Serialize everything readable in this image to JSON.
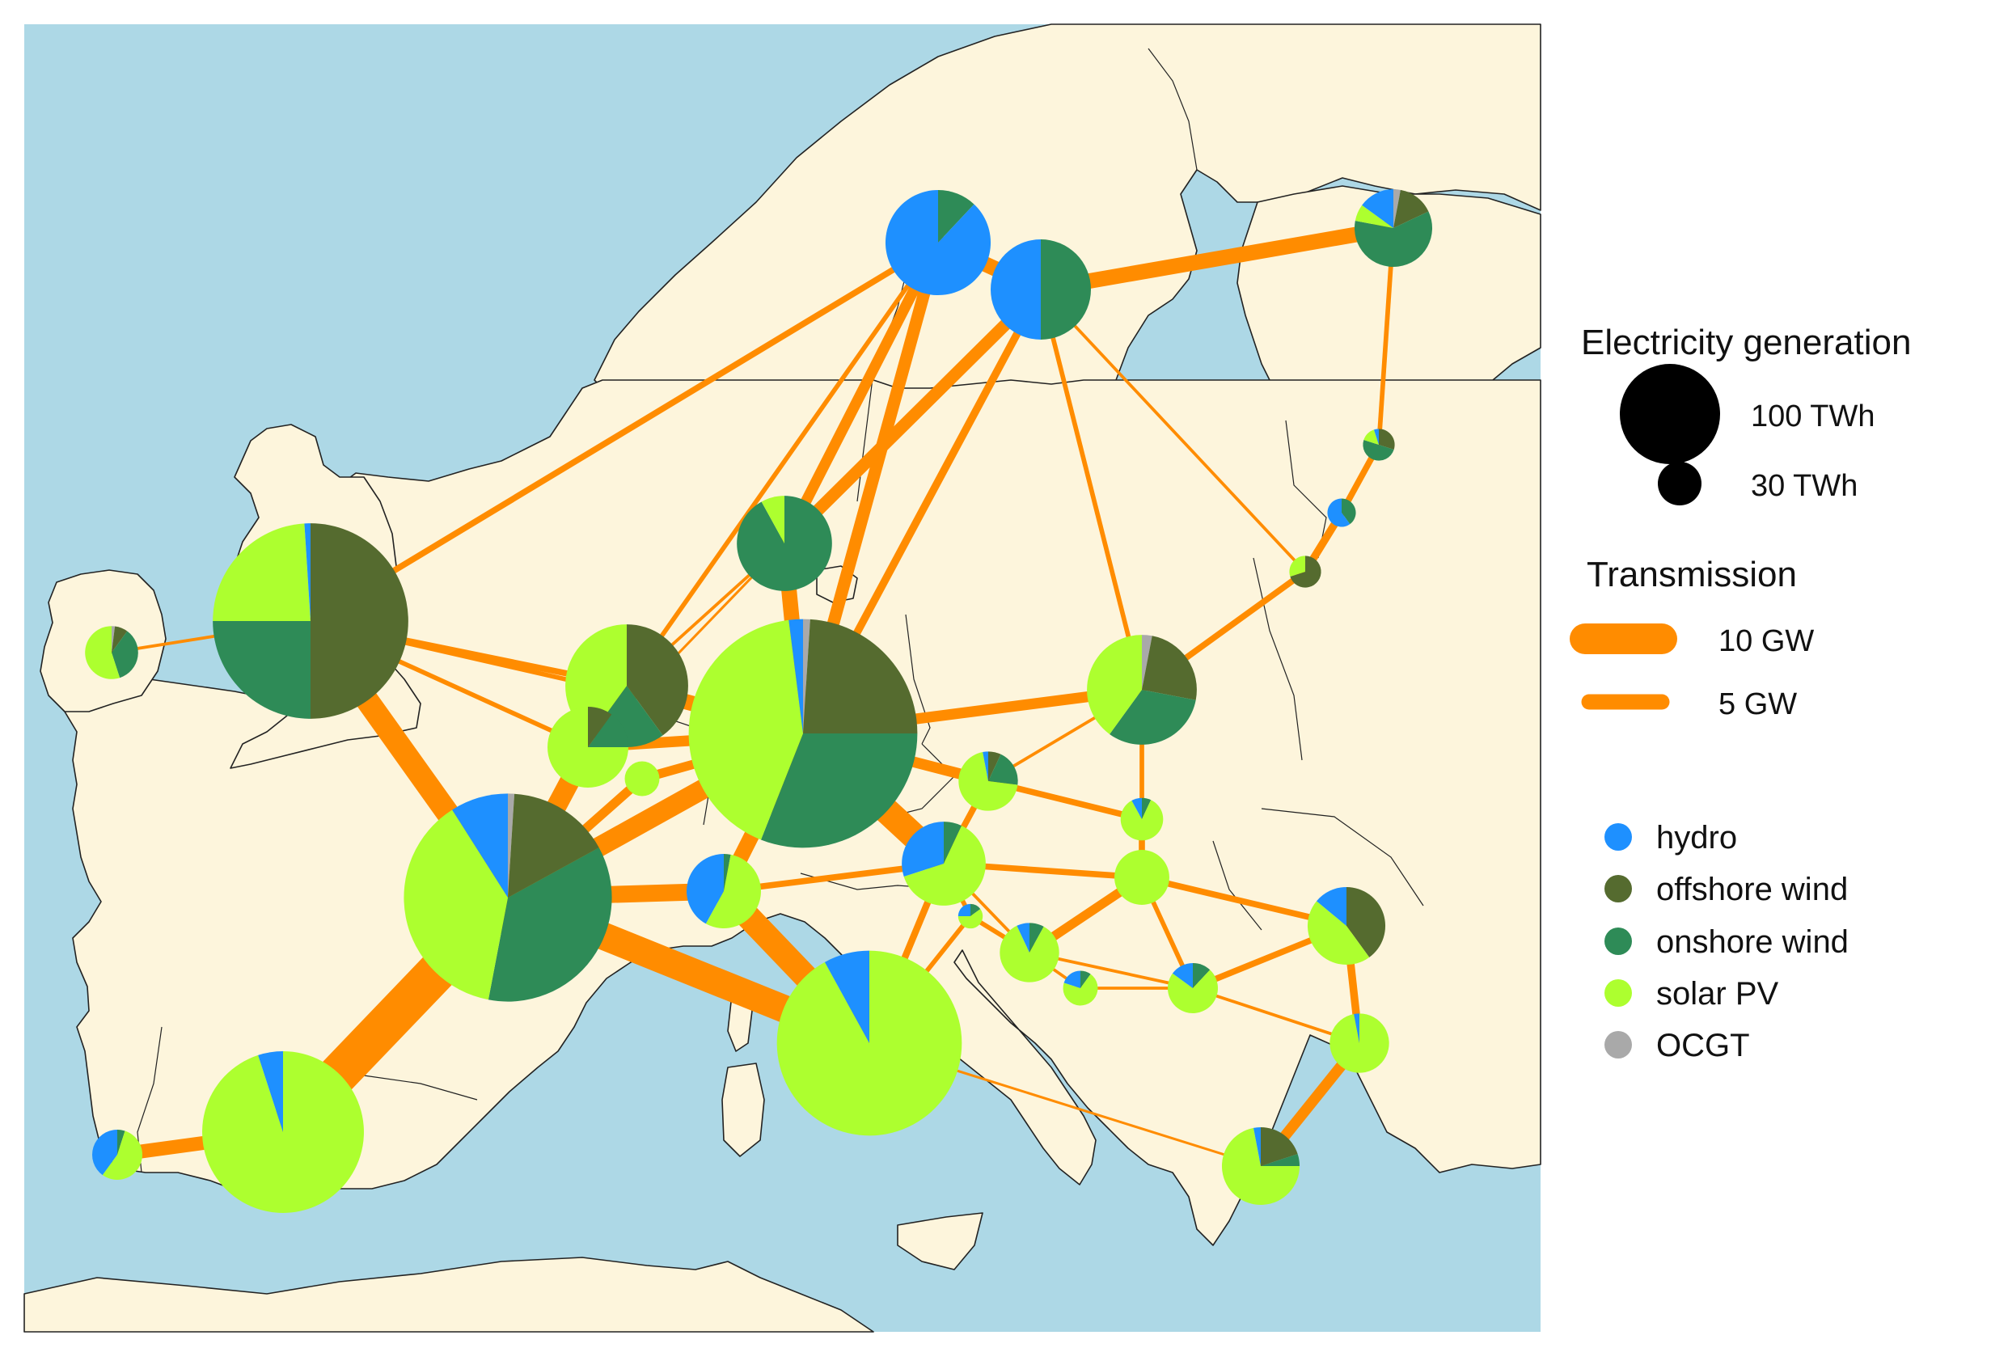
{
  "map": {
    "sea_color": "#add8e6",
    "land_color": "#fdf5dc",
    "border_color": "#222222",
    "line_color": "#ff8c00"
  },
  "carriers": [
    {
      "key": "hydro",
      "label": "hydro",
      "color": "#1e90ff"
    },
    {
      "key": "offshore_wind",
      "label": "offshore wind",
      "color": "#556b2f"
    },
    {
      "key": "onshore_wind",
      "label": "onshore wind",
      "color": "#2e8b57"
    },
    {
      "key": "solar",
      "label": "solar PV",
      "color": "#adff2f"
    },
    {
      "key": "ocgt",
      "label": "OCGT",
      "color": "#a9a9a9"
    }
  ],
  "legend": {
    "generation_title": "Electricity generation",
    "generation_sizes": [
      {
        "label": "100 TWh",
        "twh": 100
      },
      {
        "label": "30 TWh",
        "twh": 30
      }
    ],
    "transmission_title": "Transmission",
    "transmission_sizes": [
      {
        "label": "10 GW",
        "gw": 10
      },
      {
        "label": "5 GW",
        "gw": 5
      }
    ]
  },
  "nodes": [
    {
      "id": "NO",
      "twh": 110,
      "shares": {
        "hydro": 0.88,
        "onshore_wind": 0.12
      }
    },
    {
      "id": "SE",
      "twh": 100,
      "shares": {
        "hydro": 0.5,
        "onshore_wind": 0.5
      }
    },
    {
      "id": "FI",
      "twh": 60,
      "shares": {
        "hydro": 0.15,
        "offshore_wind": 0.15,
        "onshore_wind": 0.6,
        "solar": 0.07,
        "ocgt": 0.03
      }
    },
    {
      "id": "EE",
      "twh": 10,
      "shares": {
        "hydro": 0.05,
        "offshore_wind": 0.3,
        "onshore_wind": 0.5,
        "solar": 0.15
      }
    },
    {
      "id": "LV",
      "twh": 8,
      "shares": {
        "hydro": 0.6,
        "onshore_wind": 0.4
      }
    },
    {
      "id": "LT",
      "twh": 10,
      "shares": {
        "offshore_wind": 0.7,
        "solar": 0.3
      }
    },
    {
      "id": "DK",
      "twh": 90,
      "shares": {
        "onshore_wind": 0.92,
        "solar": 0.08
      }
    },
    {
      "id": "GB",
      "twh": 380,
      "shares": {
        "hydro": 0.01,
        "offshore_wind": 0.5,
        "onshore_wind": 0.25,
        "solar": 0.24
      }
    },
    {
      "id": "IE",
      "twh": 28,
      "shares": {
        "ocgt": 0.02,
        "offshore_wind": 0.08,
        "onshore_wind": 0.35,
        "solar": 0.55
      }
    },
    {
      "id": "NL",
      "twh": 150,
      "shares": {
        "offshore_wind": 0.4,
        "onshore_wind": 0.2,
        "solar": 0.4
      }
    },
    {
      "id": "BE",
      "twh": 65,
      "shares": {
        "offshore_wind": 0.1,
        "onshore_wind": 0.15,
        "solar": 0.75
      }
    },
    {
      "id": "LU",
      "twh": 12,
      "shares": {
        "solar": 1
      }
    },
    {
      "id": "DE",
      "twh": 520,
      "shares": {
        "hydro": 0.02,
        "ocgt": 0.01,
        "offshore_wind": 0.24,
        "onshore_wind": 0.31,
        "solar": 0.42
      }
    },
    {
      "id": "PL",
      "twh": 120,
      "shares": {
        "ocgt": 0.03,
        "offshore_wind": 0.25,
        "onshore_wind": 0.32,
        "solar": 0.4
      }
    },
    {
      "id": "CZ",
      "twh": 35,
      "shares": {
        "hydro": 0.03,
        "offshore_wind": 0.07,
        "onshore_wind": 0.2,
        "solar": 0.7
      }
    },
    {
      "id": "SK",
      "twh": 18,
      "shares": {
        "hydro": 0.08,
        "onshore_wind": 0.07,
        "solar": 0.85
      }
    },
    {
      "id": "AT",
      "twh": 70,
      "shares": {
        "hydro": 0.3,
        "onshore_wind": 0.07,
        "solar": 0.63
      }
    },
    {
      "id": "HU",
      "twh": 30,
      "shares": {
        "solar": 1
      }
    },
    {
      "id": "FR",
      "twh": 430,
      "shares": {
        "hydro": 0.09,
        "ocgt": 0.01,
        "offshore_wind": 0.16,
        "onshore_wind": 0.36,
        "solar": 0.38
      }
    },
    {
      "id": "CH",
      "twh": 55,
      "shares": {
        "hydro": 0.42,
        "onshore_wind": 0.03,
        "solar": 0.55
      }
    },
    {
      "id": "IT",
      "twh": 340,
      "shares": {
        "hydro": 0.08,
        "solar": 0.92
      }
    },
    {
      "id": "SI",
      "twh": 6,
      "shares": {
        "hydro": 0.25,
        "onshore_wind": 0.15,
        "solar": 0.6
      }
    },
    {
      "id": "HR",
      "twh": 35,
      "shares": {
        "hydro": 0.07,
        "onshore_wind": 0.08,
        "solar": 0.85
      }
    },
    {
      "id": "BA",
      "twh": 12,
      "shares": {
        "hydro": 0.2,
        "onshore_wind": 0.1,
        "solar": 0.7
      }
    },
    {
      "id": "RS",
      "twh": 25,
      "shares": {
        "hydro": 0.15,
        "onshore_wind": 0.12,
        "solar": 0.73
      }
    },
    {
      "id": "RO",
      "twh": 60,
      "shares": {
        "hydro": 0.14,
        "offshore_wind": 0.4,
        "solar": 0.46
      }
    },
    {
      "id": "BG",
      "twh": 35,
      "shares": {
        "hydro": 0.03,
        "solar": 0.97
      }
    },
    {
      "id": "GR",
      "twh": 60,
      "shares": {
        "hydro": 0.03,
        "offshore_wind": 0.2,
        "onshore_wind": 0.05,
        "solar": 0.72
      }
    },
    {
      "id": "ES",
      "twh": 260,
      "shares": {
        "hydro": 0.05,
        "solar": 0.95
      }
    },
    {
      "id": "PT",
      "twh": 25,
      "shares": {
        "hydro": 0.4,
        "onshore_wind": 0.05,
        "solar": 0.55
      }
    }
  ],
  "links": [
    {
      "from": "ES",
      "to": "FR",
      "gw": 13
    },
    {
      "from": "ES",
      "to": "PT",
      "gw": 4.5
    },
    {
      "from": "FR",
      "to": "GB",
      "gw": 7.5
    },
    {
      "from": "FR",
      "to": "BE",
      "gw": 6.5
    },
    {
      "from": "FR",
      "to": "DE",
      "gw": 6.5
    },
    {
      "from": "FR",
      "to": "CH",
      "gw": 5.5
    },
    {
      "from": "FR",
      "to": "IT",
      "gw": 9
    },
    {
      "from": "FR",
      "to": "LU",
      "gw": 3
    },
    {
      "from": "IT",
      "to": "CH",
      "gw": 8
    },
    {
      "from": "IT",
      "to": "AT",
      "gw": 2.2
    },
    {
      "from": "IT",
      "to": "SI",
      "gw": 1.5
    },
    {
      "from": "IT",
      "to": "GR",
      "gw": 0.8
    },
    {
      "from": "DE",
      "to": "CH",
      "gw": 5
    },
    {
      "from": "DE",
      "to": "AT",
      "gw": 8.5
    },
    {
      "from": "DE",
      "to": "NL",
      "gw": 5
    },
    {
      "from": "DE",
      "to": "BE",
      "gw": 3.5
    },
    {
      "from": "DE",
      "to": "LU",
      "gw": 3
    },
    {
      "from": "DE",
      "to": "PL",
      "gw": 3.5
    },
    {
      "from": "DE",
      "to": "CZ",
      "gw": 3.5
    },
    {
      "from": "DE",
      "to": "DK",
      "gw": 5
    },
    {
      "from": "DE",
      "to": "NO",
      "gw": 4
    },
    {
      "from": "DE",
      "to": "SE",
      "gw": 2.5
    },
    {
      "from": "DE",
      "to": "GB",
      "gw": 1.5
    },
    {
      "from": "GB",
      "to": "NO",
      "gw": 2
    },
    {
      "from": "GB",
      "to": "NL",
      "gw": 2
    },
    {
      "from": "GB",
      "to": "BE",
      "gw": 1.5
    },
    {
      "from": "GB",
      "to": "IE",
      "gw": 1
    },
    {
      "from": "NL",
      "to": "BE",
      "gw": 2.5
    },
    {
      "from": "NL",
      "to": "NO",
      "gw": 1.5
    },
    {
      "from": "NL",
      "to": "DK",
      "gw": 1
    },
    {
      "from": "BE",
      "to": "DK",
      "gw": 0.8
    },
    {
      "from": "DK",
      "to": "NO",
      "gw": 3.5
    },
    {
      "from": "DK",
      "to": "SE",
      "gw": 4
    },
    {
      "from": "NO",
      "to": "SE",
      "gw": 5
    },
    {
      "from": "SE",
      "to": "FI",
      "gw": 5
    },
    {
      "from": "SE",
      "to": "PL",
      "gw": 1.5
    },
    {
      "from": "SE",
      "to": "LT",
      "gw": 1
    },
    {
      "from": "FI",
      "to": "EE",
      "gw": 1.5
    },
    {
      "from": "EE",
      "to": "LV",
      "gw": 2
    },
    {
      "from": "LV",
      "to": "LT",
      "gw": 2.5
    },
    {
      "from": "LT",
      "to": "PL",
      "gw": 2
    },
    {
      "from": "PL",
      "to": "CZ",
      "gw": 1
    },
    {
      "from": "PL",
      "to": "SK",
      "gw": 1.5
    },
    {
      "from": "CZ",
      "to": "AT",
      "gw": 2
    },
    {
      "from": "CZ",
      "to": "SK",
      "gw": 2
    },
    {
      "from": "SK",
      "to": "HU",
      "gw": 2
    },
    {
      "from": "AT",
      "to": "HU",
      "gw": 2
    },
    {
      "from": "AT",
      "to": "CH",
      "gw": 2
    },
    {
      "from": "AT",
      "to": "SI",
      "gw": 1.5
    },
    {
      "from": "AT",
      "to": "HR",
      "gw": 1
    },
    {
      "from": "HU",
      "to": "HR",
      "gw": 3
    },
    {
      "from": "HU",
      "to": "RS",
      "gw": 1.5
    },
    {
      "from": "HU",
      "to": "RO",
      "gw": 2
    },
    {
      "from": "SI",
      "to": "HR",
      "gw": 1.5
    },
    {
      "from": "HR",
      "to": "BA",
      "gw": 1
    },
    {
      "from": "HR",
      "to": "RS",
      "gw": 1
    },
    {
      "from": "BA",
      "to": "RS",
      "gw": 1
    },
    {
      "from": "RS",
      "to": "RO",
      "gw": 2
    },
    {
      "from": "RS",
      "to": "BG",
      "gw": 1
    },
    {
      "from": "RO",
      "to": "BG",
      "gw": 2.5
    },
    {
      "from": "BG",
      "to": "GR",
      "gw": 3.5
    }
  ]
}
